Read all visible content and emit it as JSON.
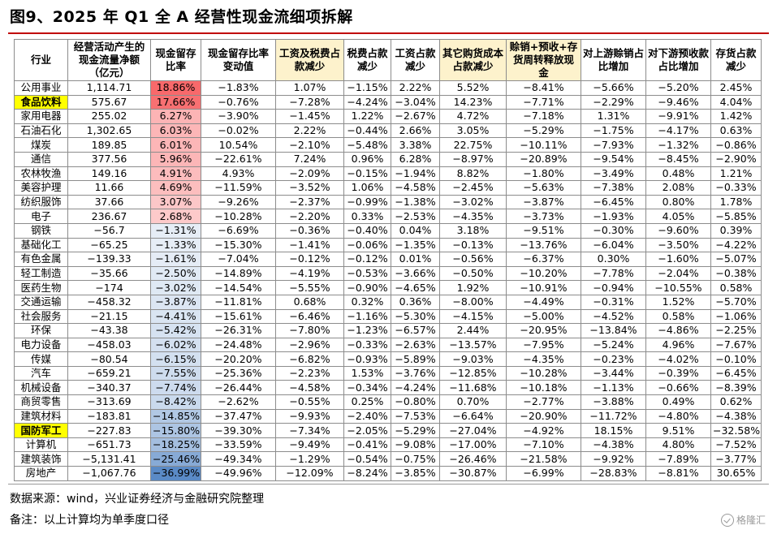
{
  "title": "图9、2025 年 Q1 全 A 经营性现金流细项拆解",
  "headers": [
    {
      "text": "行业",
      "highlight": false
    },
    {
      "text": "经营活动产生的现金流量净额（亿元）",
      "highlight": false
    },
    {
      "text": "现金留存比率",
      "highlight": false
    },
    {
      "text": "现金留存比率变动值",
      "highlight": false
    },
    {
      "text": "工资及税费占款减少",
      "highlight": true
    },
    {
      "text": "税费占款减少",
      "highlight": false
    },
    {
      "text": "工资占款减少",
      "highlight": false
    },
    {
      "text": "其它购货成本占款减少",
      "highlight": true
    },
    {
      "text": "赊销+预收+存货周转释放现金",
      "highlight": true
    },
    {
      "text": "对上游赊销占比增加",
      "highlight": false
    },
    {
      "text": "对下游预收款占比增加",
      "highlight": false
    },
    {
      "text": "存货占款减少",
      "highlight": false
    }
  ],
  "colors": {
    "title_rule": "#c00000",
    "highlight_header": "#fdf2cc",
    "highlight_name": "#ffff00",
    "retention_pos_max": "#f8696b",
    "retention_neg_max": "#5a8ac6"
  },
  "rows": [
    {
      "industry": "公用事业",
      "highlight": false,
      "cells": [
        "1,114.71",
        "18.86%",
        "−1.83%",
        "1.07%",
        "−1.15%",
        "2.22%",
        "5.52%",
        "−8.41%",
        "−5.66%",
        "−5.20%",
        "2.45%"
      ],
      "retention": 18.86
    },
    {
      "industry": "食品饮料",
      "highlight": true,
      "cells": [
        "575.67",
        "17.66%",
        "−0.76%",
        "−7.28%",
        "−4.24%",
        "−3.04%",
        "14.23%",
        "−7.71%",
        "−2.29%",
        "−9.46%",
        "4.04%"
      ],
      "retention": 17.66
    },
    {
      "industry": "家用电器",
      "highlight": false,
      "cells": [
        "255.02",
        "6.27%",
        "−3.90%",
        "−1.45%",
        "1.22%",
        "−2.67%",
        "4.72%",
        "−7.18%",
        "1.31%",
        "−9.91%",
        "1.42%"
      ],
      "retention": 6.27
    },
    {
      "industry": "石油石化",
      "highlight": false,
      "cells": [
        "1,302.65",
        "6.03%",
        "−0.02%",
        "2.22%",
        "−0.44%",
        "2.66%",
        "3.05%",
        "−5.29%",
        "−1.75%",
        "−4.17%",
        "0.63%"
      ],
      "retention": 6.03
    },
    {
      "industry": "煤炭",
      "highlight": false,
      "cells": [
        "189.85",
        "6.01%",
        "10.54%",
        "−2.10%",
        "−5.48%",
        "3.38%",
        "22.75%",
        "−10.11%",
        "−7.93%",
        "−1.32%",
        "−0.86%"
      ],
      "retention": 6.01
    },
    {
      "industry": "通信",
      "highlight": false,
      "cells": [
        "377.56",
        "5.96%",
        "−22.61%",
        "7.24%",
        "0.96%",
        "6.28%",
        "−8.97%",
        "−20.89%",
        "−9.54%",
        "−8.45%",
        "−2.90%"
      ],
      "retention": 5.96
    },
    {
      "industry": "农林牧渔",
      "highlight": false,
      "cells": [
        "149.16",
        "4.91%",
        "4.93%",
        "−2.09%",
        "−0.15%",
        "−1.94%",
        "8.82%",
        "−1.80%",
        "−3.49%",
        "0.48%",
        "1.21%"
      ],
      "retention": 4.91
    },
    {
      "industry": "美容护理",
      "highlight": false,
      "cells": [
        "11.66",
        "4.69%",
        "−11.59%",
        "−3.52%",
        "1.06%",
        "−4.58%",
        "−2.45%",
        "−5.63%",
        "−7.38%",
        "2.08%",
        "−0.33%"
      ],
      "retention": 4.69
    },
    {
      "industry": "纺织服饰",
      "highlight": false,
      "cells": [
        "37.66",
        "3.07%",
        "−9.26%",
        "−2.37%",
        "−0.99%",
        "−1.38%",
        "−3.02%",
        "−3.87%",
        "−6.45%",
        "0.80%",
        "1.78%"
      ],
      "retention": 3.07
    },
    {
      "industry": "电子",
      "highlight": false,
      "cells": [
        "236.67",
        "2.68%",
        "−10.28%",
        "−2.20%",
        "0.33%",
        "−2.53%",
        "−4.35%",
        "−3.73%",
        "−1.93%",
        "4.05%",
        "−5.85%"
      ],
      "retention": 2.68
    },
    {
      "industry": "钢铁",
      "highlight": false,
      "cells": [
        "−56.7",
        "−1.31%",
        "−6.69%",
        "−0.36%",
        "−0.40%",
        "0.04%",
        "3.18%",
        "−9.51%",
        "−0.30%",
        "−9.60%",
        "0.39%"
      ],
      "retention": -1.31
    },
    {
      "industry": "基础化工",
      "highlight": false,
      "cells": [
        "−65.25",
        "−1.33%",
        "−15.30%",
        "−1.41%",
        "−0.06%",
        "−1.35%",
        "−0.13%",
        "−13.76%",
        "−6.04%",
        "−3.50%",
        "−4.22%"
      ],
      "retention": -1.33
    },
    {
      "industry": "有色金属",
      "highlight": false,
      "cells": [
        "−139.33",
        "−1.61%",
        "−7.04%",
        "−0.12%",
        "−0.12%",
        "0.01%",
        "−0.56%",
        "−6.37%",
        "0.30%",
        "−1.60%",
        "−5.07%"
      ],
      "retention": -1.61
    },
    {
      "industry": "轻工制造",
      "highlight": false,
      "cells": [
        "−35.66",
        "−2.50%",
        "−14.89%",
        "−4.19%",
        "−0.53%",
        "−3.66%",
        "−0.50%",
        "−10.20%",
        "−7.78%",
        "−2.04%",
        "−0.38%"
      ],
      "retention": -2.5
    },
    {
      "industry": "医药生物",
      "highlight": false,
      "cells": [
        "−174",
        "−3.02%",
        "−14.54%",
        "−5.55%",
        "−0.90%",
        "−4.65%",
        "1.92%",
        "−10.91%",
        "−0.94%",
        "−10.55%",
        "0.58%"
      ],
      "retention": -3.02
    },
    {
      "industry": "交通运输",
      "highlight": false,
      "cells": [
        "−458.32",
        "−3.87%",
        "−11.81%",
        "0.68%",
        "0.32%",
        "0.36%",
        "−8.00%",
        "−4.49%",
        "−0.31%",
        "1.52%",
        "−5.70%"
      ],
      "retention": -3.87
    },
    {
      "industry": "社会服务",
      "highlight": false,
      "cells": [
        "−21.15",
        "−4.41%",
        "−15.61%",
        "−6.46%",
        "−1.16%",
        "−5.30%",
        "−4.15%",
        "−5.00%",
        "−4.52%",
        "0.58%",
        "−1.06%"
      ],
      "retention": -4.41
    },
    {
      "industry": "环保",
      "highlight": false,
      "cells": [
        "−43.38",
        "−5.42%",
        "−26.31%",
        "−7.80%",
        "−1.23%",
        "−6.57%",
        "2.44%",
        "−20.95%",
        "−13.84%",
        "−4.86%",
        "−2.25%"
      ],
      "retention": -5.42
    },
    {
      "industry": "电力设备",
      "highlight": false,
      "cells": [
        "−458.03",
        "−6.02%",
        "−24.48%",
        "−2.96%",
        "−0.33%",
        "−2.63%",
        "−13.57%",
        "−7.95%",
        "−5.24%",
        "4.96%",
        "−7.67%"
      ],
      "retention": -6.02
    },
    {
      "industry": "传媒",
      "highlight": false,
      "cells": [
        "−80.54",
        "−6.15%",
        "−20.20%",
        "−6.82%",
        "−0.93%",
        "−5.89%",
        "−9.03%",
        "−4.35%",
        "−0.23%",
        "−4.02%",
        "−0.10%"
      ],
      "retention": -6.15
    },
    {
      "industry": "汽车",
      "highlight": false,
      "cells": [
        "−659.21",
        "−7.55%",
        "−25.36%",
        "−2.23%",
        "1.53%",
        "−3.76%",
        "−12.85%",
        "−10.28%",
        "−3.44%",
        "−0.39%",
        "−6.45%"
      ],
      "retention": -7.55
    },
    {
      "industry": "机械设备",
      "highlight": false,
      "cells": [
        "−340.37",
        "−7.74%",
        "−26.44%",
        "−4.58%",
        "−0.34%",
        "−4.24%",
        "−11.68%",
        "−10.18%",
        "−1.13%",
        "−0.66%",
        "−8.39%"
      ],
      "retention": -7.74
    },
    {
      "industry": "商贸零售",
      "highlight": false,
      "cells": [
        "−313.69",
        "−8.42%",
        "−2.62%",
        "−0.55%",
        "0.25%",
        "−0.80%",
        "0.70%",
        "−2.77%",
        "−3.88%",
        "0.49%",
        "0.62%"
      ],
      "retention": -8.42
    },
    {
      "industry": "建筑材料",
      "highlight": false,
      "cells": [
        "−183.81",
        "−14.85%",
        "−37.47%",
        "−9.93%",
        "−2.40%",
        "−7.53%",
        "−6.64%",
        "−20.90%",
        "−11.72%",
        "−4.80%",
        "−4.38%"
      ],
      "retention": -14.85
    },
    {
      "industry": "国防军工",
      "highlight": true,
      "cells": [
        "−227.83",
        "−15.80%",
        "−39.30%",
        "−7.34%",
        "−2.05%",
        "−5.29%",
        "−27.04%",
        "−4.92%",
        "18.15%",
        "9.51%",
        "−32.58%"
      ],
      "retention": -15.8
    },
    {
      "industry": "计算机",
      "highlight": false,
      "cells": [
        "−651.73",
        "−18.25%",
        "−33.59%",
        "−9.49%",
        "−0.41%",
        "−9.08%",
        "−17.00%",
        "−7.10%",
        "−4.38%",
        "4.80%",
        "−7.52%"
      ],
      "retention": -18.25
    },
    {
      "industry": "建筑装饰",
      "highlight": false,
      "cells": [
        "−5,131.41",
        "−25.46%",
        "−49.34%",
        "−1.29%",
        "−0.54%",
        "−0.75%",
        "−26.46%",
        "−21.58%",
        "−9.92%",
        "−7.89%",
        "−3.77%"
      ],
      "retention": -25.46
    },
    {
      "industry": "房地产",
      "highlight": false,
      "cells": [
        "−1,067.76",
        "−36.99%",
        "−49.96%",
        "−12.09%",
        "−8.24%",
        "−3.85%",
        "−30.87%",
        "−6.99%",
        "−28.83%",
        "−8.81%",
        "30.65%"
      ],
      "retention": -36.99
    }
  ],
  "source": "数据来源：wind，兴业证券经济与金融研究院整理",
  "note": "备注：以上计算均为单季度口径",
  "watermark": "格隆汇"
}
